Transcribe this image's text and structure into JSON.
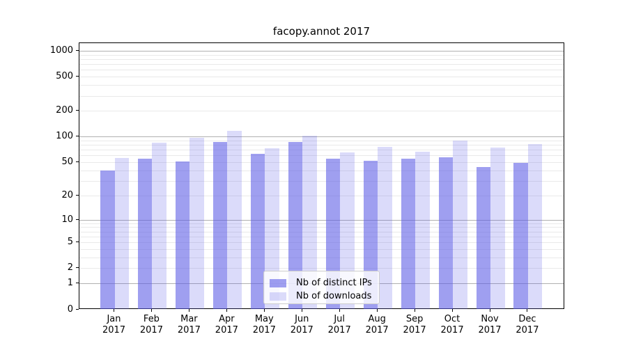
{
  "chart_data": {
    "type": "bar",
    "title": "facopy.annot 2017",
    "categories": [
      "Jan",
      "Feb",
      "Mar",
      "Apr",
      "May",
      "Jun",
      "Jul",
      "Aug",
      "Sep",
      "Oct",
      "Nov",
      "Dec"
    ],
    "category_year": "2017",
    "series": [
      {
        "name": "Nb of distinct IPs",
        "color": "rgba(90,90,230,0.58)",
        "values": [
          40,
          55,
          51,
          87,
          63,
          87,
          56,
          52,
          56,
          58,
          44,
          50
        ]
      },
      {
        "name": "Nb of downloads",
        "color": "rgba(90,90,230,0.22)",
        "values": [
          57,
          85,
          98,
          118,
          74,
          104,
          66,
          77,
          67,
          91,
          75,
          83
        ]
      }
    ],
    "yscale": "log1p",
    "ylim": [
      0,
      1236
    ],
    "yticks": [
      0,
      1,
      2,
      5,
      10,
      20,
      50,
      100,
      200,
      500,
      1000
    ],
    "grid": {
      "major_ticks": [
        1,
        10,
        100,
        1000
      ],
      "minor_base": [
        2,
        3,
        4,
        5,
        6,
        7,
        8,
        9
      ],
      "minor_scales": [
        1,
        10,
        100
      ],
      "major_color": "#b0b0b0",
      "minor_color": "#e9e9e9"
    },
    "legend_position": "lower center"
  }
}
